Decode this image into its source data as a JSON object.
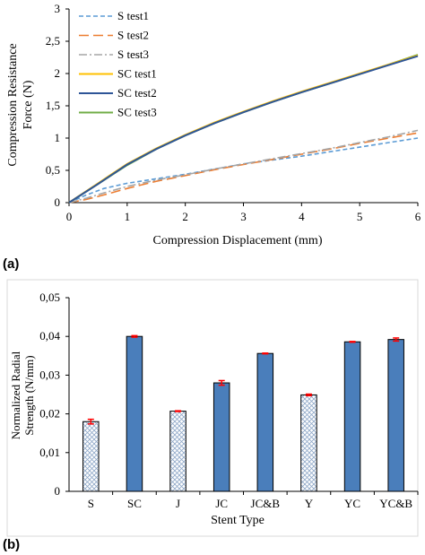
{
  "panels": {
    "a": "(a)",
    "b": "(b)"
  },
  "chart_data": [
    {
      "type": "line",
      "title": "",
      "xlabel": "Compression Displacement (mm)",
      "ylabel": [
        "Compression Resistance",
        "Force (N)"
      ],
      "xlim": [
        0,
        6
      ],
      "ylim": [
        0,
        3
      ],
      "x_ticks": [
        "0",
        "1",
        "2",
        "3",
        "4",
        "5",
        "6"
      ],
      "y_ticks": [
        "0",
        "0,5",
        "1",
        "1,5",
        "2",
        "2,5",
        "3"
      ],
      "grid": false,
      "legend": "top-left",
      "series": [
        {
          "name": "S test1",
          "color": "#5b9bd5",
          "dash": "short-dash",
          "x": [
            0,
            0.3,
            0.6,
            1,
            1.5,
            2,
            2.5,
            3,
            3.5,
            4,
            4.5,
            5,
            5.5,
            6
          ],
          "y": [
            0,
            0.12,
            0.22,
            0.3,
            0.37,
            0.44,
            0.52,
            0.6,
            0.66,
            0.72,
            0.79,
            0.86,
            0.93,
            1.0
          ]
        },
        {
          "name": "S test2",
          "color": "#ed7d31",
          "dash": "long-dash",
          "x": [
            0,
            0.3,
            0.6,
            1,
            1.5,
            2,
            2.5,
            3,
            3.5,
            4,
            4.5,
            5,
            5.5,
            6
          ],
          "y": [
            0,
            0.05,
            0.12,
            0.22,
            0.33,
            0.42,
            0.51,
            0.59,
            0.67,
            0.75,
            0.83,
            0.92,
            1.0,
            1.08
          ]
        },
        {
          "name": "S test3",
          "color": "#a5a5a5",
          "dash": "dash-dot",
          "x": [
            0,
            0.3,
            0.6,
            1,
            1.5,
            2,
            2.5,
            3,
            3.5,
            4,
            4.5,
            5,
            5.5,
            6
          ],
          "y": [
            0,
            0.07,
            0.15,
            0.25,
            0.35,
            0.43,
            0.52,
            0.6,
            0.68,
            0.76,
            0.84,
            0.93,
            1.02,
            1.12
          ]
        },
        {
          "name": "SC test1",
          "color": "#ffc000",
          "dash": "solid",
          "x": [
            0,
            0.5,
            1,
            1.5,
            2,
            2.5,
            3,
            3.5,
            4,
            4.5,
            5,
            5.5,
            6
          ],
          "y": [
            0,
            0.3,
            0.6,
            0.84,
            1.05,
            1.24,
            1.41,
            1.57,
            1.72,
            1.86,
            2.0,
            2.14,
            2.28
          ]
        },
        {
          "name": "SC test2",
          "color": "#2e5597",
          "dash": "solid",
          "x": [
            0,
            0.5,
            1,
            1.5,
            2,
            2.5,
            3,
            3.5,
            4,
            4.5,
            5,
            5.5,
            6
          ],
          "y": [
            0,
            0.29,
            0.59,
            0.83,
            1.04,
            1.23,
            1.4,
            1.56,
            1.71,
            1.85,
            1.99,
            2.13,
            2.27
          ]
        },
        {
          "name": "SC test3",
          "color": "#70ad47",
          "dash": "solid",
          "x": [
            0,
            0.5,
            1,
            1.5,
            2,
            2.5,
            3,
            3.5,
            4,
            4.5,
            5,
            5.5,
            6
          ],
          "y": [
            0,
            0.29,
            0.58,
            0.83,
            1.04,
            1.23,
            1.4,
            1.56,
            1.71,
            1.85,
            1.99,
            2.14,
            2.29
          ]
        }
      ]
    },
    {
      "type": "bar",
      "title": "",
      "xlabel": "Stent Type",
      "ylabel": [
        "Normalized Radial",
        "Strength (N/mm)"
      ],
      "ylim": [
        0,
        0.05
      ],
      "y_ticks": [
        "0",
        "0,01",
        "0,02",
        "0,03",
        "0,04",
        "0,05"
      ],
      "grid": false,
      "categories": [
        "S",
        "SC",
        "J",
        "JC",
        "JC&B",
        "Y",
        "YC",
        "YC&B"
      ],
      "values": [
        0.018,
        0.04,
        0.0207,
        0.028,
        0.0356,
        0.0249,
        0.0386,
        0.0392
      ],
      "errors": [
        0.0006,
        0.0002,
        0.0001,
        0.0006,
        0.0001,
        0.0002,
        0.0001,
        0.0004
      ],
      "fill": [
        "hatched",
        "solid",
        "hatched",
        "solid",
        "solid",
        "hatched",
        "solid",
        "solid"
      ],
      "solid_color": "#4a7ebb",
      "error_color": "#ff0000"
    }
  ]
}
